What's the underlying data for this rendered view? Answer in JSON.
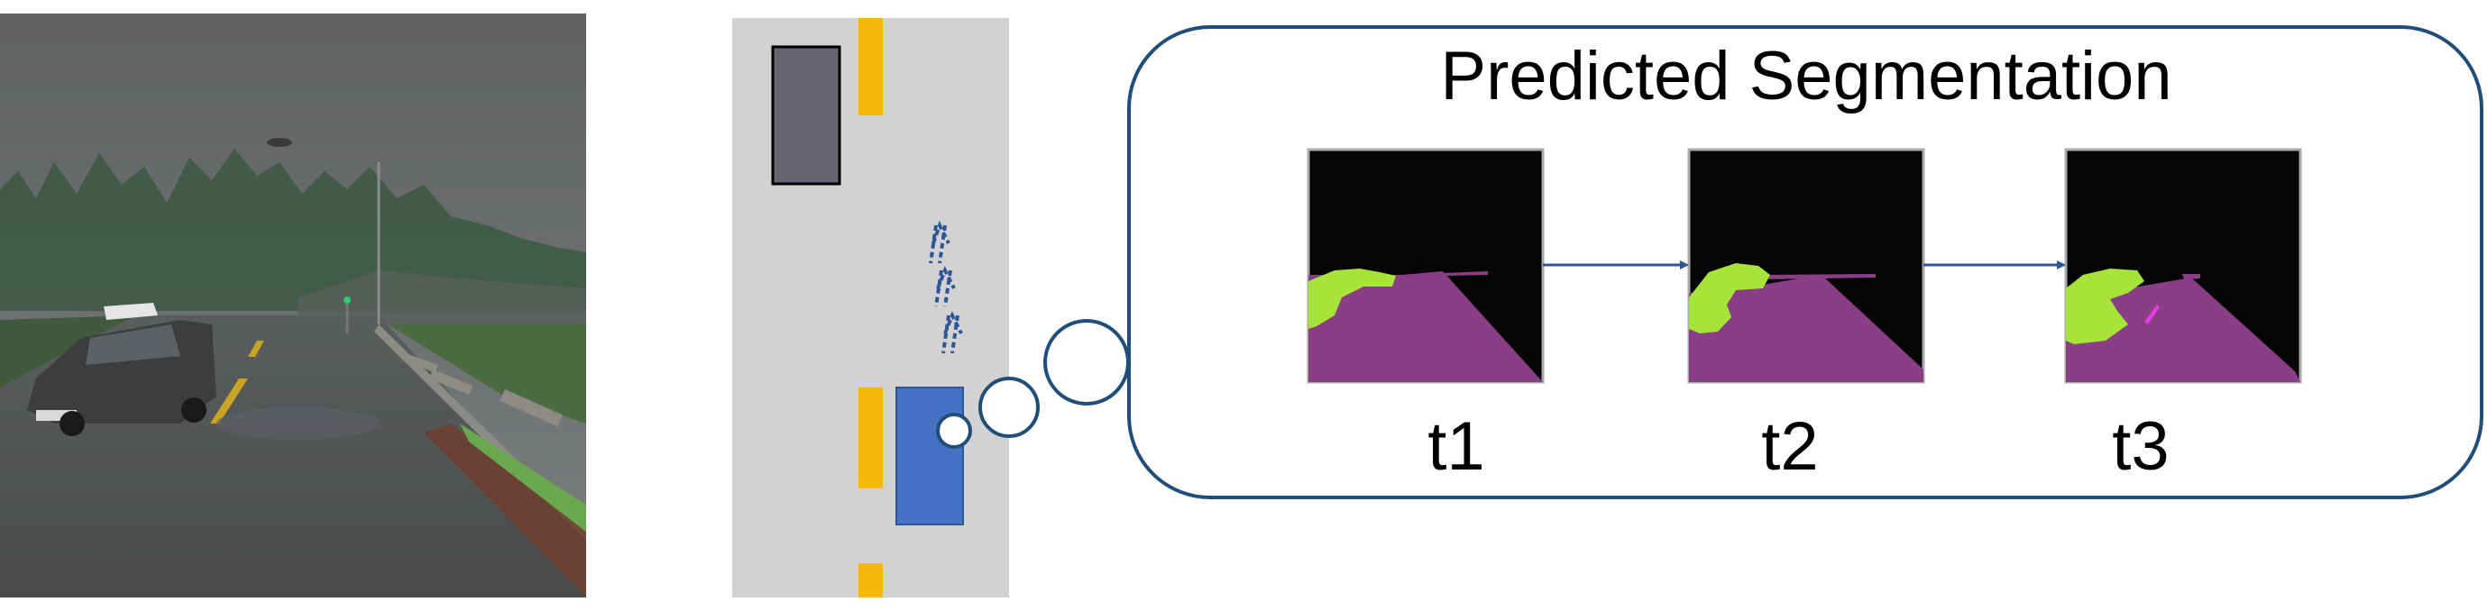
{
  "photo": {
    "description_label": "rainy road camera view"
  },
  "topdown": {
    "road_color": "#d2d2d2",
    "lane_marking_color": "#f5b70a",
    "ego_car_color": "#4472c4",
    "other_car_color": "#676570",
    "arrow_color": "#2f5597"
  },
  "bubble": {
    "title": "Predicted Segmentation",
    "border_color": "#1f4e79",
    "frames": [
      {
        "label": "t1"
      },
      {
        "label": "t2"
      },
      {
        "label": "t3"
      }
    ]
  },
  "segmentation_colors": {
    "background": "#050505",
    "road": "#8a3e86",
    "vegetation": "#a7e43a",
    "highlight": "#e040e0"
  }
}
